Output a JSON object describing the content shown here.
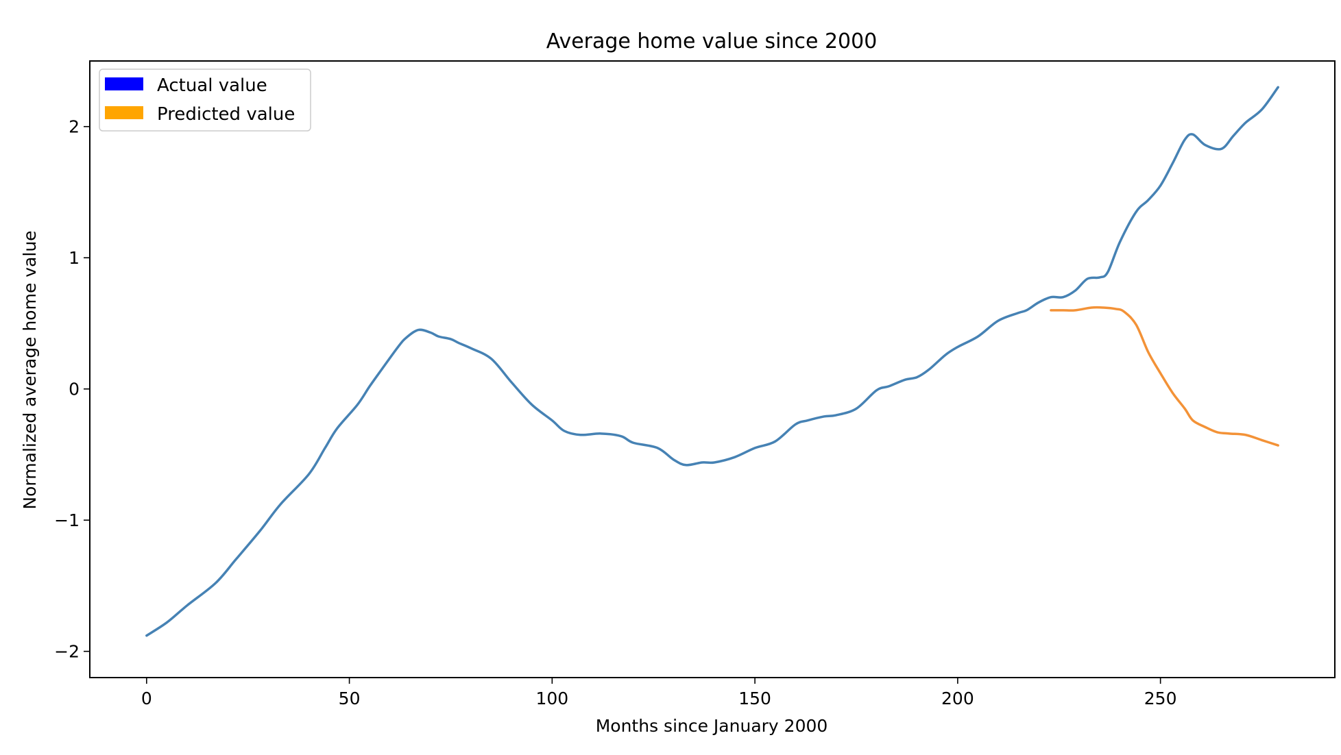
{
  "chart_data": {
    "type": "line",
    "title": "Average home value since 2000",
    "xlabel": "Months since January 2000",
    "ylabel": "Normalized average home value",
    "xlim": [
      -14,
      293
    ],
    "ylim": [
      -2.2,
      2.5
    ],
    "xticks": [
      0,
      50,
      100,
      150,
      200,
      250
    ],
    "yticks": [
      -2,
      -1,
      0,
      1,
      2
    ],
    "xtick_labels": [
      "0",
      "50",
      "100",
      "150",
      "200",
      "250"
    ],
    "ytick_labels": [
      "−2",
      "−1",
      "0",
      "1",
      "2"
    ],
    "grid": false,
    "legend": {
      "placement": "top-left",
      "entries": [
        {
          "label": "Actual value",
          "color": "#0000ff"
        },
        {
          "label": "Predicted value",
          "color": "#ffa500"
        }
      ]
    },
    "series": [
      {
        "name": "Actual value",
        "color": "#4682b4",
        "points": [
          [
            0,
            -1.88
          ],
          [
            5,
            -1.78
          ],
          [
            10,
            -1.65
          ],
          [
            17,
            -1.48
          ],
          [
            22,
            -1.3
          ],
          [
            28,
            -1.08
          ],
          [
            33,
            -0.88
          ],
          [
            40,
            -0.65
          ],
          [
            44,
            -0.45
          ],
          [
            47,
            -0.3
          ],
          [
            52,
            -0.12
          ],
          [
            55,
            0.02
          ],
          [
            58,
            0.15
          ],
          [
            62,
            0.32
          ],
          [
            64,
            0.39
          ],
          [
            67,
            0.45
          ],
          [
            70,
            0.43
          ],
          [
            72,
            0.4
          ],
          [
            75,
            0.38
          ],
          [
            77,
            0.35
          ],
          [
            80,
            0.31
          ],
          [
            85,
            0.23
          ],
          [
            90,
            0.05
          ],
          [
            95,
            -0.12
          ],
          [
            100,
            -0.24
          ],
          [
            103,
            -0.32
          ],
          [
            107,
            -0.35
          ],
          [
            112,
            -0.34
          ],
          [
            117,
            -0.36
          ],
          [
            120,
            -0.41
          ],
          [
            126,
            -0.45
          ],
          [
            130,
            -0.54
          ],
          [
            133,
            -0.58
          ],
          [
            137,
            -0.56
          ],
          [
            140,
            -0.56
          ],
          [
            145,
            -0.52
          ],
          [
            150,
            -0.45
          ],
          [
            155,
            -0.4
          ],
          [
            160,
            -0.27
          ],
          [
            163,
            -0.24
          ],
          [
            167,
            -0.21
          ],
          [
            170,
            -0.2
          ],
          [
            175,
            -0.15
          ],
          [
            180,
            -0.01
          ],
          [
            183,
            0.02
          ],
          [
            187,
            0.07
          ],
          [
            190,
            0.09
          ],
          [
            193,
            0.15
          ],
          [
            197,
            0.26
          ],
          [
            200,
            0.32
          ],
          [
            205,
            0.4
          ],
          [
            210,
            0.52
          ],
          [
            215,
            0.58
          ],
          [
            217,
            0.6
          ],
          [
            220,
            0.66
          ],
          [
            223,
            0.7
          ],
          [
            226,
            0.7
          ],
          [
            229,
            0.75
          ],
          [
            232,
            0.84
          ],
          [
            235,
            0.85
          ],
          [
            237,
            0.89
          ],
          [
            240,
            1.12
          ],
          [
            244,
            1.35
          ],
          [
            247,
            1.44
          ],
          [
            250,
            1.55
          ],
          [
            253,
            1.72
          ],
          [
            256,
            1.9
          ],
          [
            258,
            1.94
          ],
          [
            261,
            1.86
          ],
          [
            265,
            1.83
          ],
          [
            268,
            1.93
          ],
          [
            271,
            2.03
          ],
          [
            275,
            2.13
          ],
          [
            279,
            2.3
          ]
        ]
      },
      {
        "name": "Predicted value",
        "color": "#f39237",
        "points": [
          [
            223,
            0.6
          ],
          [
            226,
            0.6
          ],
          [
            229,
            0.6
          ],
          [
            233,
            0.62
          ],
          [
            236,
            0.62
          ],
          [
            239,
            0.61
          ],
          [
            241,
            0.59
          ],
          [
            244,
            0.49
          ],
          [
            247,
            0.28
          ],
          [
            250,
            0.12
          ],
          [
            253,
            -0.03
          ],
          [
            256,
            -0.15
          ],
          [
            258,
            -0.24
          ],
          [
            261,
            -0.29
          ],
          [
            264,
            -0.33
          ],
          [
            267,
            -0.34
          ],
          [
            271,
            -0.35
          ],
          [
            275,
            -0.39
          ],
          [
            279,
            -0.43
          ]
        ]
      }
    ]
  }
}
